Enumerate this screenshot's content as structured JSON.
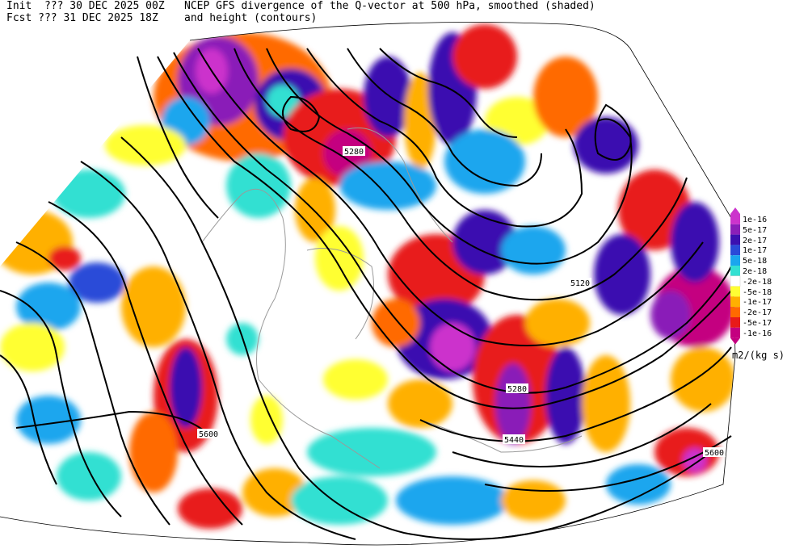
{
  "header": {
    "init_line": "Init  ??? 30 DEC 2025 00Z",
    "fcst_line": "Fcst ??? 31 DEC 2025 18Z",
    "title_line1": "NCEP GFS divergence of the Q-vector at 500 hPa, smoothed (shaded)",
    "title_line2": "and height (contours)"
  },
  "colorbar": {
    "units": "m2/(kg s)",
    "entries": [
      {
        "label": "1e-16",
        "color": "#cc33cc"
      },
      {
        "label": "5e-17",
        "color": "#8a1fb8"
      },
      {
        "label": "2e-17",
        "color": "#3b10b0"
      },
      {
        "label": "1e-17",
        "color": "#2a4bd8"
      },
      {
        "label": "5e-18",
        "color": "#1aa6ee"
      },
      {
        "label": "2e-18",
        "color": "#33e0d2"
      },
      {
        "label": "-2e-18",
        "color": "#ffffff"
      },
      {
        "label": "-5e-18",
        "color": "#ffff33"
      },
      {
        "label": "-1e-17",
        "color": "#ffb000"
      },
      {
        "label": "-2e-17",
        "color": "#ff6a00"
      },
      {
        "label": "-5e-17",
        "color": "#e81a1a"
      },
      {
        "label": "-1e-16",
        "color": "#c40080"
      }
    ]
  },
  "contour_labels": [
    {
      "text": "5280",
      "name": "contour-label-5280-north"
    },
    {
      "text": "5120",
      "name": "contour-label-5120"
    },
    {
      "text": "5280",
      "name": "contour-label-5280-south"
    },
    {
      "text": "5440",
      "name": "contour-label-5440"
    },
    {
      "text": "5600",
      "name": "contour-label-5600-west"
    },
    {
      "text": "5600",
      "name": "contour-label-5600-east"
    }
  ],
  "map": {
    "field": "Q-vector divergence (shaded) and 500 hPa height (contours)",
    "projection": "polar conic"
  }
}
